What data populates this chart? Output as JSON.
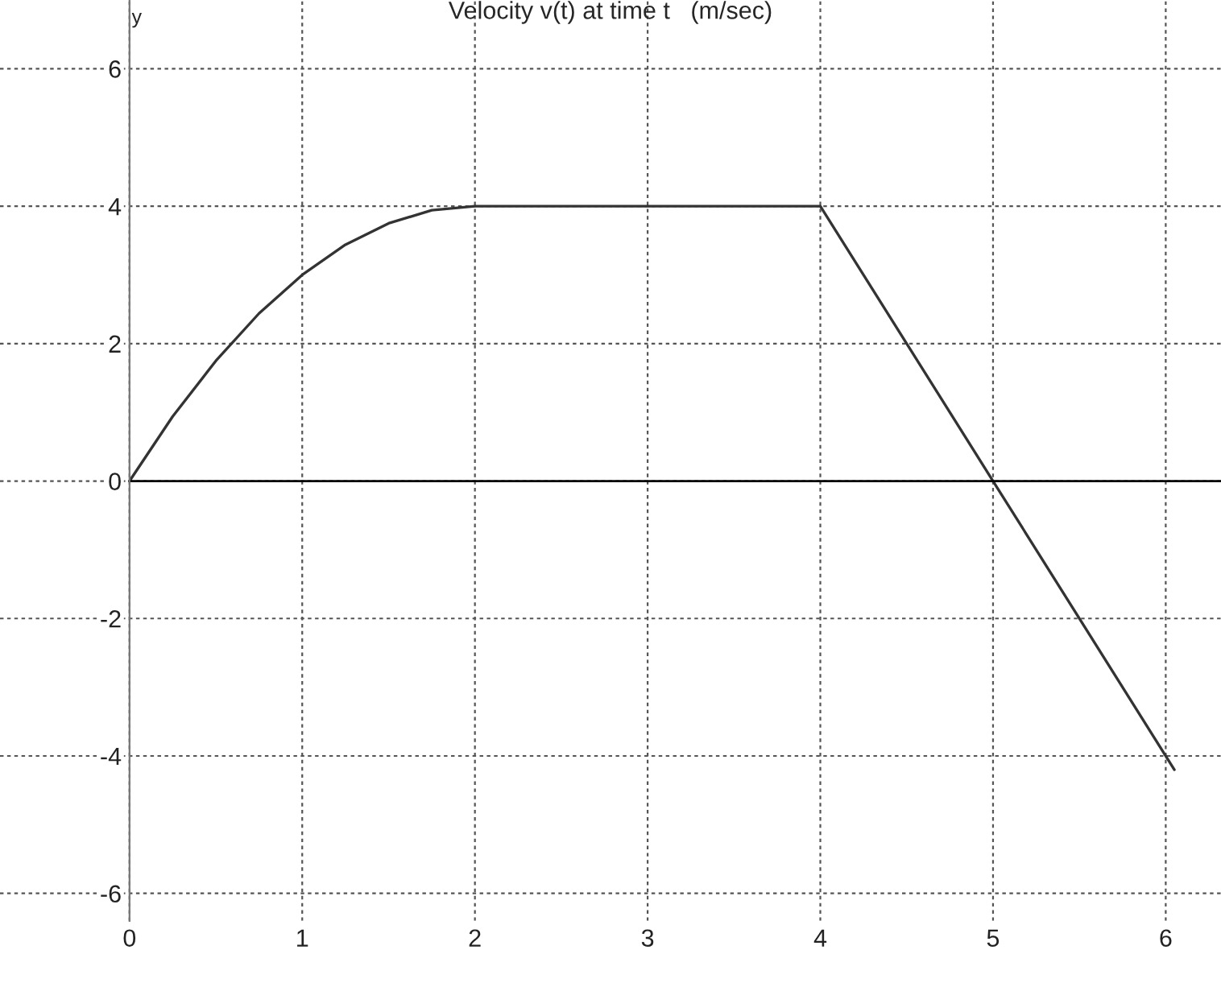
{
  "chart_data": {
    "type": "line",
    "title": "Velocity v(t) at time t   (m/sec)",
    "ylabel": "y",
    "x": [
      0,
      0.25,
      0.5,
      0.75,
      1,
      1.25,
      1.5,
      1.75,
      2,
      4,
      5,
      6.05
    ],
    "series": [
      {
        "color": "#333333",
        "values": [
          0,
          0.94,
          1.75,
          2.44,
          3,
          3.44,
          3.75,
          3.94,
          4,
          4,
          0,
          -4.2
        ]
      }
    ],
    "xlim": [
      -0.75,
      6.32
    ],
    "ylim": [
      -6.4,
      7.0
    ],
    "xticks": [
      0,
      1,
      2,
      3,
      4,
      5,
      6
    ],
    "yticks": [
      -6,
      -4,
      -2,
      0,
      2,
      4,
      6
    ],
    "grid": true,
    "line_style": "solid",
    "ref_lines": [
      {
        "axis": "y",
        "value": 0,
        "color": "#000000"
      }
    ]
  }
}
